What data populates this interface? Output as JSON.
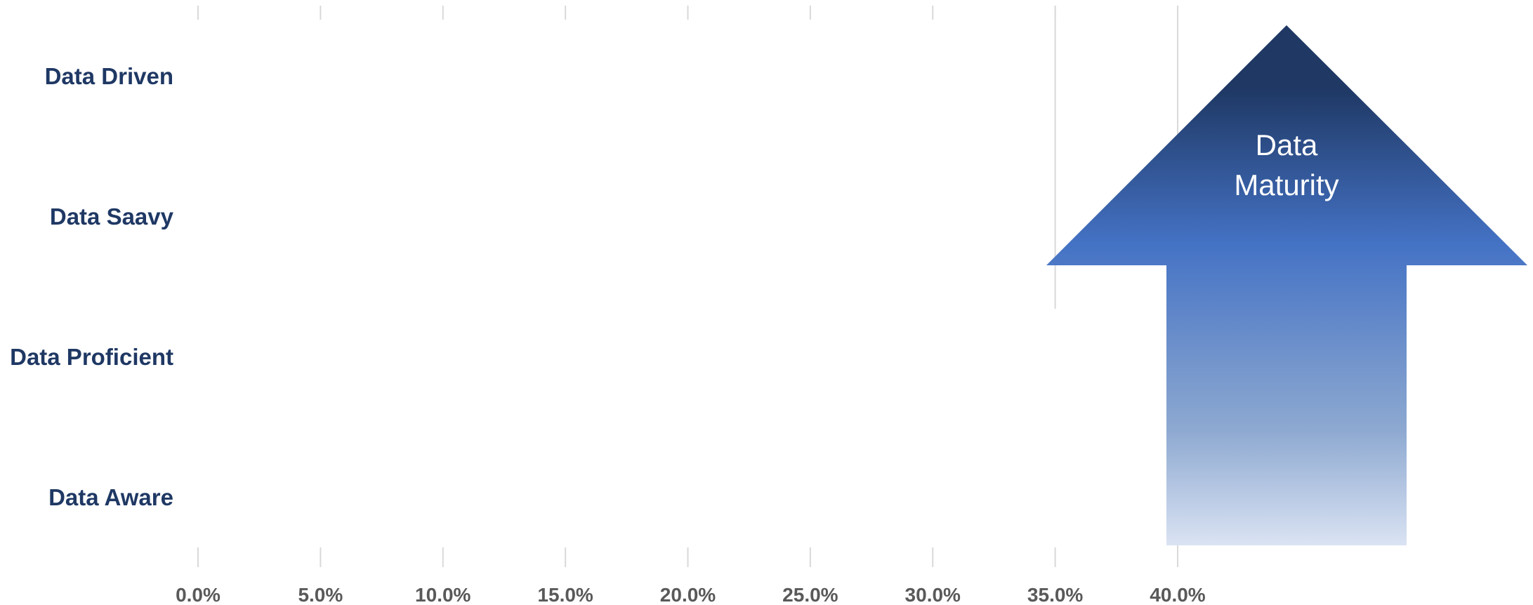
{
  "chart_data": {
    "type": "bar",
    "orientation": "horizontal",
    "categories": [
      "Data Driven",
      "Data Saavy",
      "Data Proficient",
      "Data Aware"
    ],
    "values": [
      0,
      0,
      0,
      0
    ],
    "xlim": [
      0,
      0.4
    ],
    "x_ticks": [
      "0.0%",
      "5.0%",
      "10.0%",
      "15.0%",
      "20.0%",
      "25.0%",
      "30.0%",
      "35.0%",
      "40.0%"
    ],
    "grid": "vertical",
    "title": "",
    "xlabel": "",
    "ylabel": "",
    "annotation": {
      "shape": "up-arrow",
      "lines": [
        "Data",
        "Maturity"
      ]
    }
  },
  "colors": {
    "category_label": "#1f3864",
    "tick_label": "#595959",
    "grid": "#d9d9d9",
    "arrow_top": "#1f3864",
    "arrow_mid": "#4472c4",
    "arrow_bottom": "#dae3f3",
    "arrow_text": "#ffffff"
  }
}
